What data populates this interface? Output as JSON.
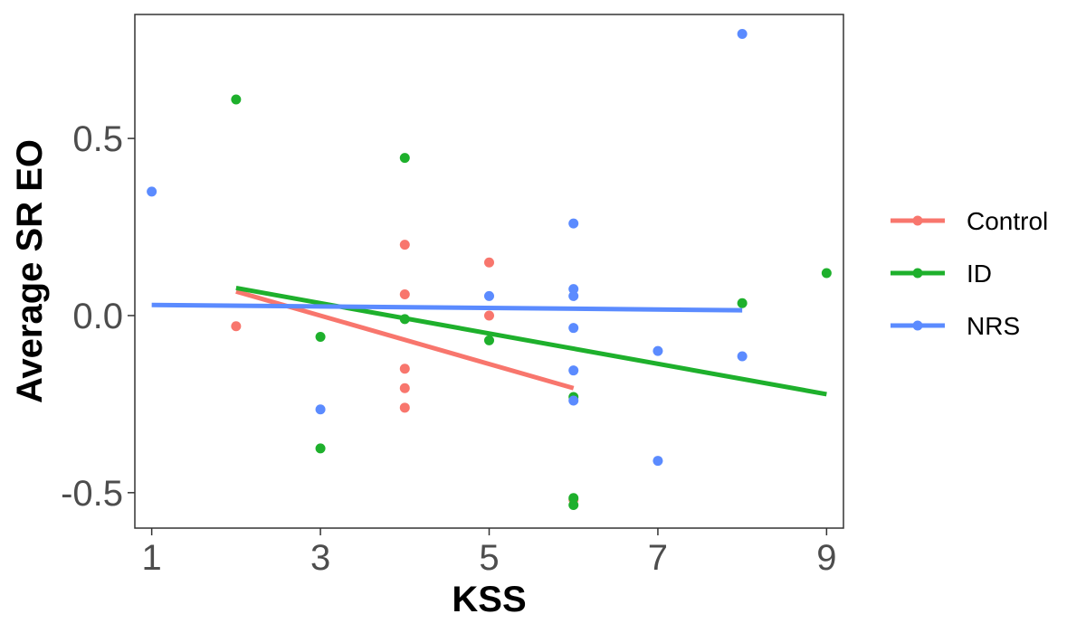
{
  "chart_data": {
    "type": "scatter",
    "xlabel": "KSS",
    "ylabel": "Average SR EO",
    "xlim": [
      0.8,
      9.2
    ],
    "ylim": [
      -0.6,
      0.85
    ],
    "x_ticks": [
      1,
      3,
      5,
      7,
      9
    ],
    "x_tick_labels": [
      "1",
      "3",
      "5",
      "7",
      "9"
    ],
    "y_ticks": [
      -0.5,
      0.0,
      0.5
    ],
    "y_tick_labels": [
      "-0.5",
      "0.0",
      "0.5"
    ],
    "grid": false,
    "legend_position": "right",
    "series": [
      {
        "name": "Control",
        "color": "#F8766D",
        "points": [
          {
            "x": 2,
            "y": -0.03
          },
          {
            "x": 4,
            "y": 0.2
          },
          {
            "x": 4,
            "y": 0.06
          },
          {
            "x": 4,
            "y": -0.15
          },
          {
            "x": 4,
            "y": -0.205
          },
          {
            "x": 4,
            "y": -0.26
          },
          {
            "x": 5,
            "y": 0.15
          },
          {
            "x": 5,
            "y": 0.0
          },
          {
            "x": 6,
            "y": -0.52
          }
        ],
        "trend": {
          "x": [
            2,
            6
          ],
          "y": [
            0.068,
            -0.205
          ]
        }
      },
      {
        "name": "ID",
        "color": "#1EB02C",
        "points": [
          {
            "x": 2,
            "y": 0.61
          },
          {
            "x": 3,
            "y": -0.06
          },
          {
            "x": 3,
            "y": -0.375
          },
          {
            "x": 4,
            "y": 0.445
          },
          {
            "x": 4,
            "y": -0.01
          },
          {
            "x": 5,
            "y": -0.07
          },
          {
            "x": 6,
            "y": -0.23
          },
          {
            "x": 6,
            "y": -0.515
          },
          {
            "x": 6,
            "y": -0.535
          },
          {
            "x": 8,
            "y": 0.035
          },
          {
            "x": 9,
            "y": 0.12
          }
        ],
        "trend": {
          "x": [
            2,
            9
          ],
          "y": [
            0.078,
            -0.222
          ]
        }
      },
      {
        "name": "NRS",
        "color": "#5B8BFF",
        "points": [
          {
            "x": 1,
            "y": 0.35
          },
          {
            "x": 3,
            "y": -0.265
          },
          {
            "x": 5,
            "y": 0.055
          },
          {
            "x": 6,
            "y": 0.26
          },
          {
            "x": 6,
            "y": 0.075
          },
          {
            "x": 6,
            "y": 0.055
          },
          {
            "x": 6,
            "y": -0.035
          },
          {
            "x": 6,
            "y": -0.155
          },
          {
            "x": 6,
            "y": -0.24
          },
          {
            "x": 7,
            "y": -0.1
          },
          {
            "x": 7,
            "y": -0.41
          },
          {
            "x": 8,
            "y": -0.115
          },
          {
            "x": 8,
            "y": 0.795
          }
        ],
        "trend": {
          "x": [
            1,
            8
          ],
          "y": [
            0.03,
            0.015
          ]
        }
      }
    ]
  }
}
